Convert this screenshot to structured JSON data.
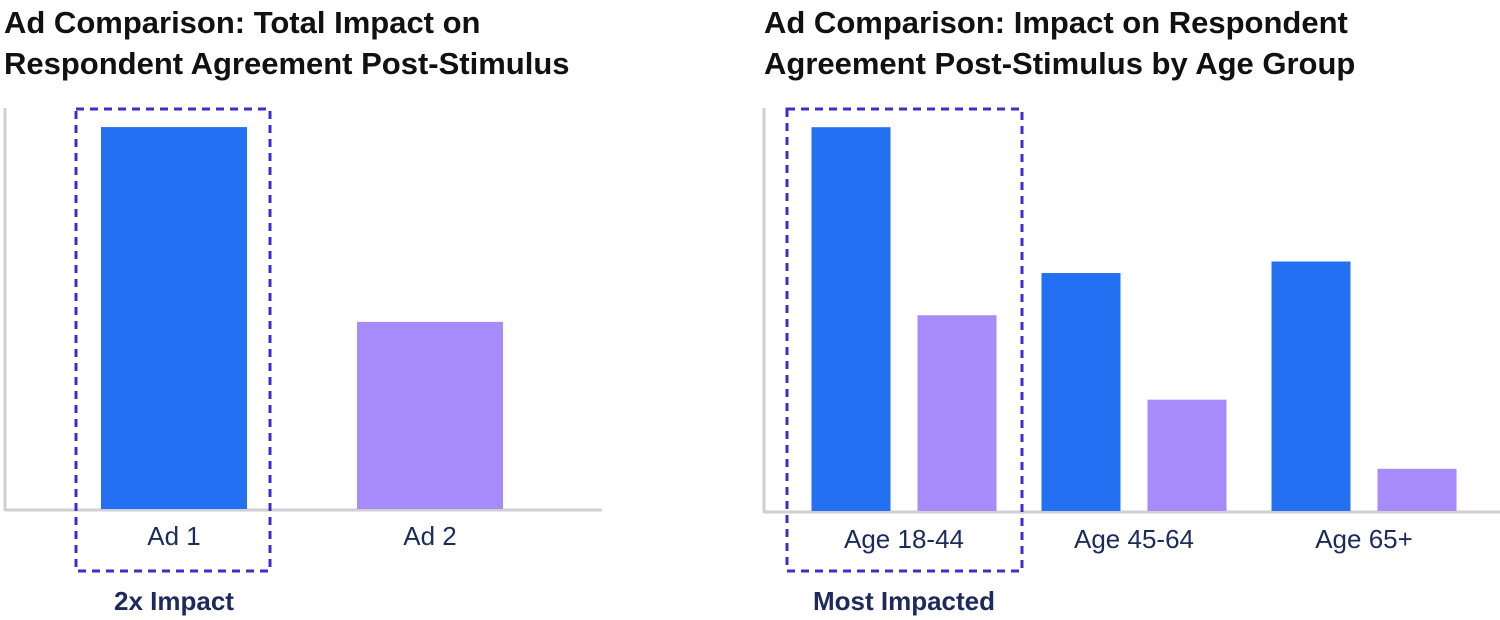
{
  "chart_data": [
    {
      "type": "bar",
      "title": "Ad Comparison: Total Impact on Respondent Agreement Post-Stimulus",
      "categories": [
        "Ad 1",
        "Ad 2"
      ],
      "values": [
        100,
        49
      ],
      "colors": [
        "#2470f2",
        "#a78bfa"
      ],
      "ylim": [
        0,
        105
      ],
      "annotation": {
        "text": "2x Impact",
        "category": "Ad 1"
      }
    },
    {
      "type": "grouped-bar",
      "title": "Ad Comparison: Impact on Respondent Agreement Post-Stimulus by Age Group",
      "categories": [
        "Age 18-44",
        "Age 45-64",
        "Age 65+"
      ],
      "series": [
        {
          "color": "#2470f2",
          "values": [
            100,
            62,
            65
          ]
        },
        {
          "color": "#a78bfa",
          "values": [
            51,
            29,
            11
          ]
        }
      ],
      "ylim": [
        0,
        105
      ],
      "annotation": {
        "text": "Most Impacted",
        "category": "Age 18-44"
      }
    }
  ]
}
